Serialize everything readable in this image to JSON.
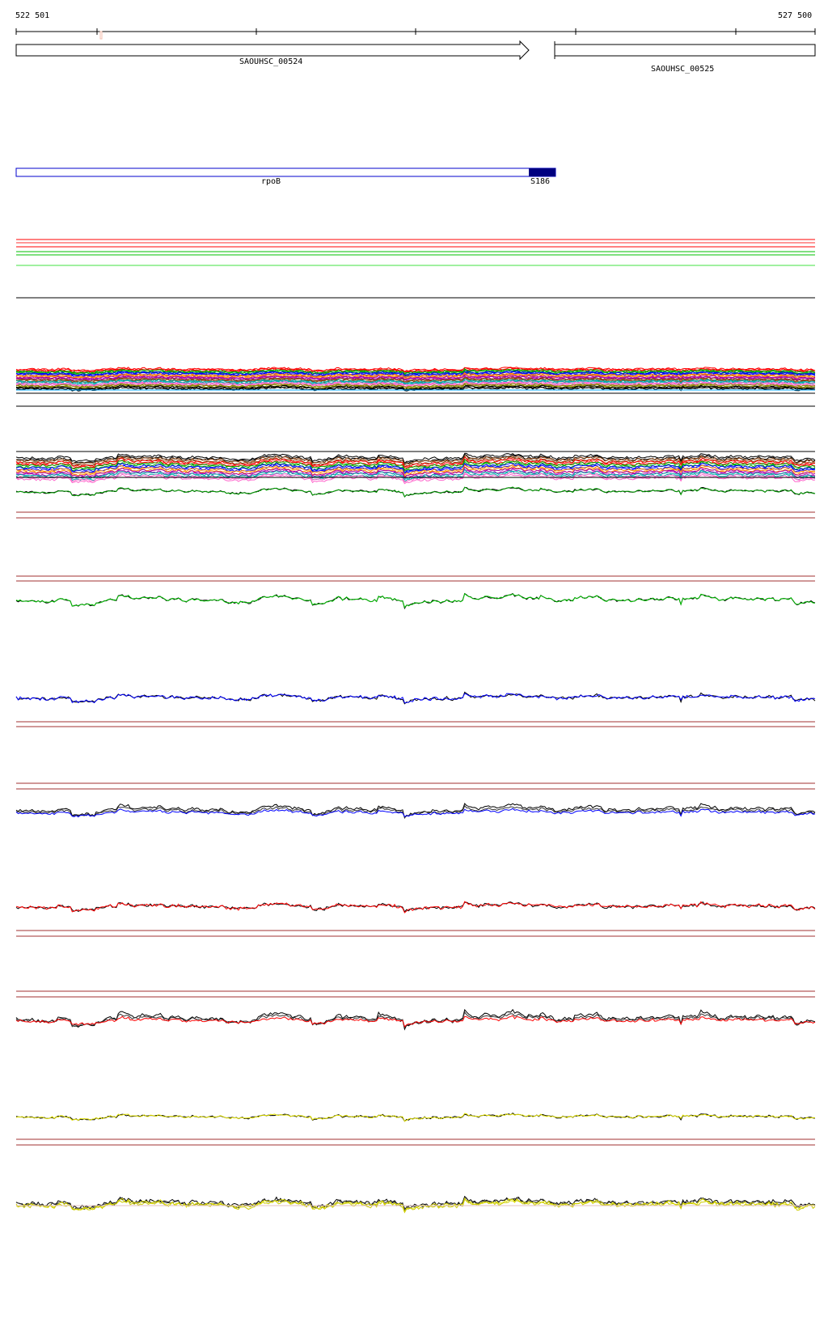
{
  "ruler": {
    "start_label": "522 501",
    "end_label": "527 500"
  },
  "genes": [
    {
      "name": "SAOUHSC_00524",
      "strand": "forward"
    },
    {
      "name": "SAOUHSC_00525",
      "strand": "forward"
    }
  ],
  "feature": {
    "label": "rpoB",
    "end_label": "S186",
    "color": "#0000cc",
    "fill_color": "#000080"
  },
  "colors": {
    "reference_red": "#a03030",
    "green": "#00c000",
    "blue": "#0000ff",
    "red": "#ff0000",
    "yellow": "#e0e000",
    "black": "#000000"
  },
  "tracks": [
    {
      "id": "multi-band-1",
      "colors": [
        "#ff0000",
        "#00aa00",
        "#0000ff",
        "#ff8800",
        "#aa00aa",
        "#8b4513",
        "#00aaaa",
        "#ff66cc",
        "#888800",
        "#000000"
      ]
    },
    {
      "id": "multi-band-2",
      "colors": [
        "#000000",
        "#8b4513",
        "#ff0000",
        "#00aa00",
        "#0000ff",
        "#ff8800",
        "#aa00aa",
        "#00aaaa",
        "#ff66cc"
      ]
    },
    {
      "id": "green-track",
      "colors": [
        "#000000",
        "#00c000"
      ]
    },
    {
      "id": "blue-track",
      "colors": [
        "#000000",
        "#0000ff"
      ]
    },
    {
      "id": "blue-black-track",
      "colors": [
        "#000000",
        "#333333",
        "#0000ff"
      ]
    },
    {
      "id": "red-track",
      "colors": [
        "#000000",
        "#ff0000"
      ]
    },
    {
      "id": "red-black-track",
      "colors": [
        "#000000",
        "#333333",
        "#ff0000"
      ]
    },
    {
      "id": "yellow-track",
      "colors": [
        "#000000",
        "#e0e000"
      ]
    },
    {
      "id": "yellow-black-track",
      "colors": [
        "#000000",
        "#333333",
        "#e0e000",
        "#cccc00"
      ]
    }
  ]
}
